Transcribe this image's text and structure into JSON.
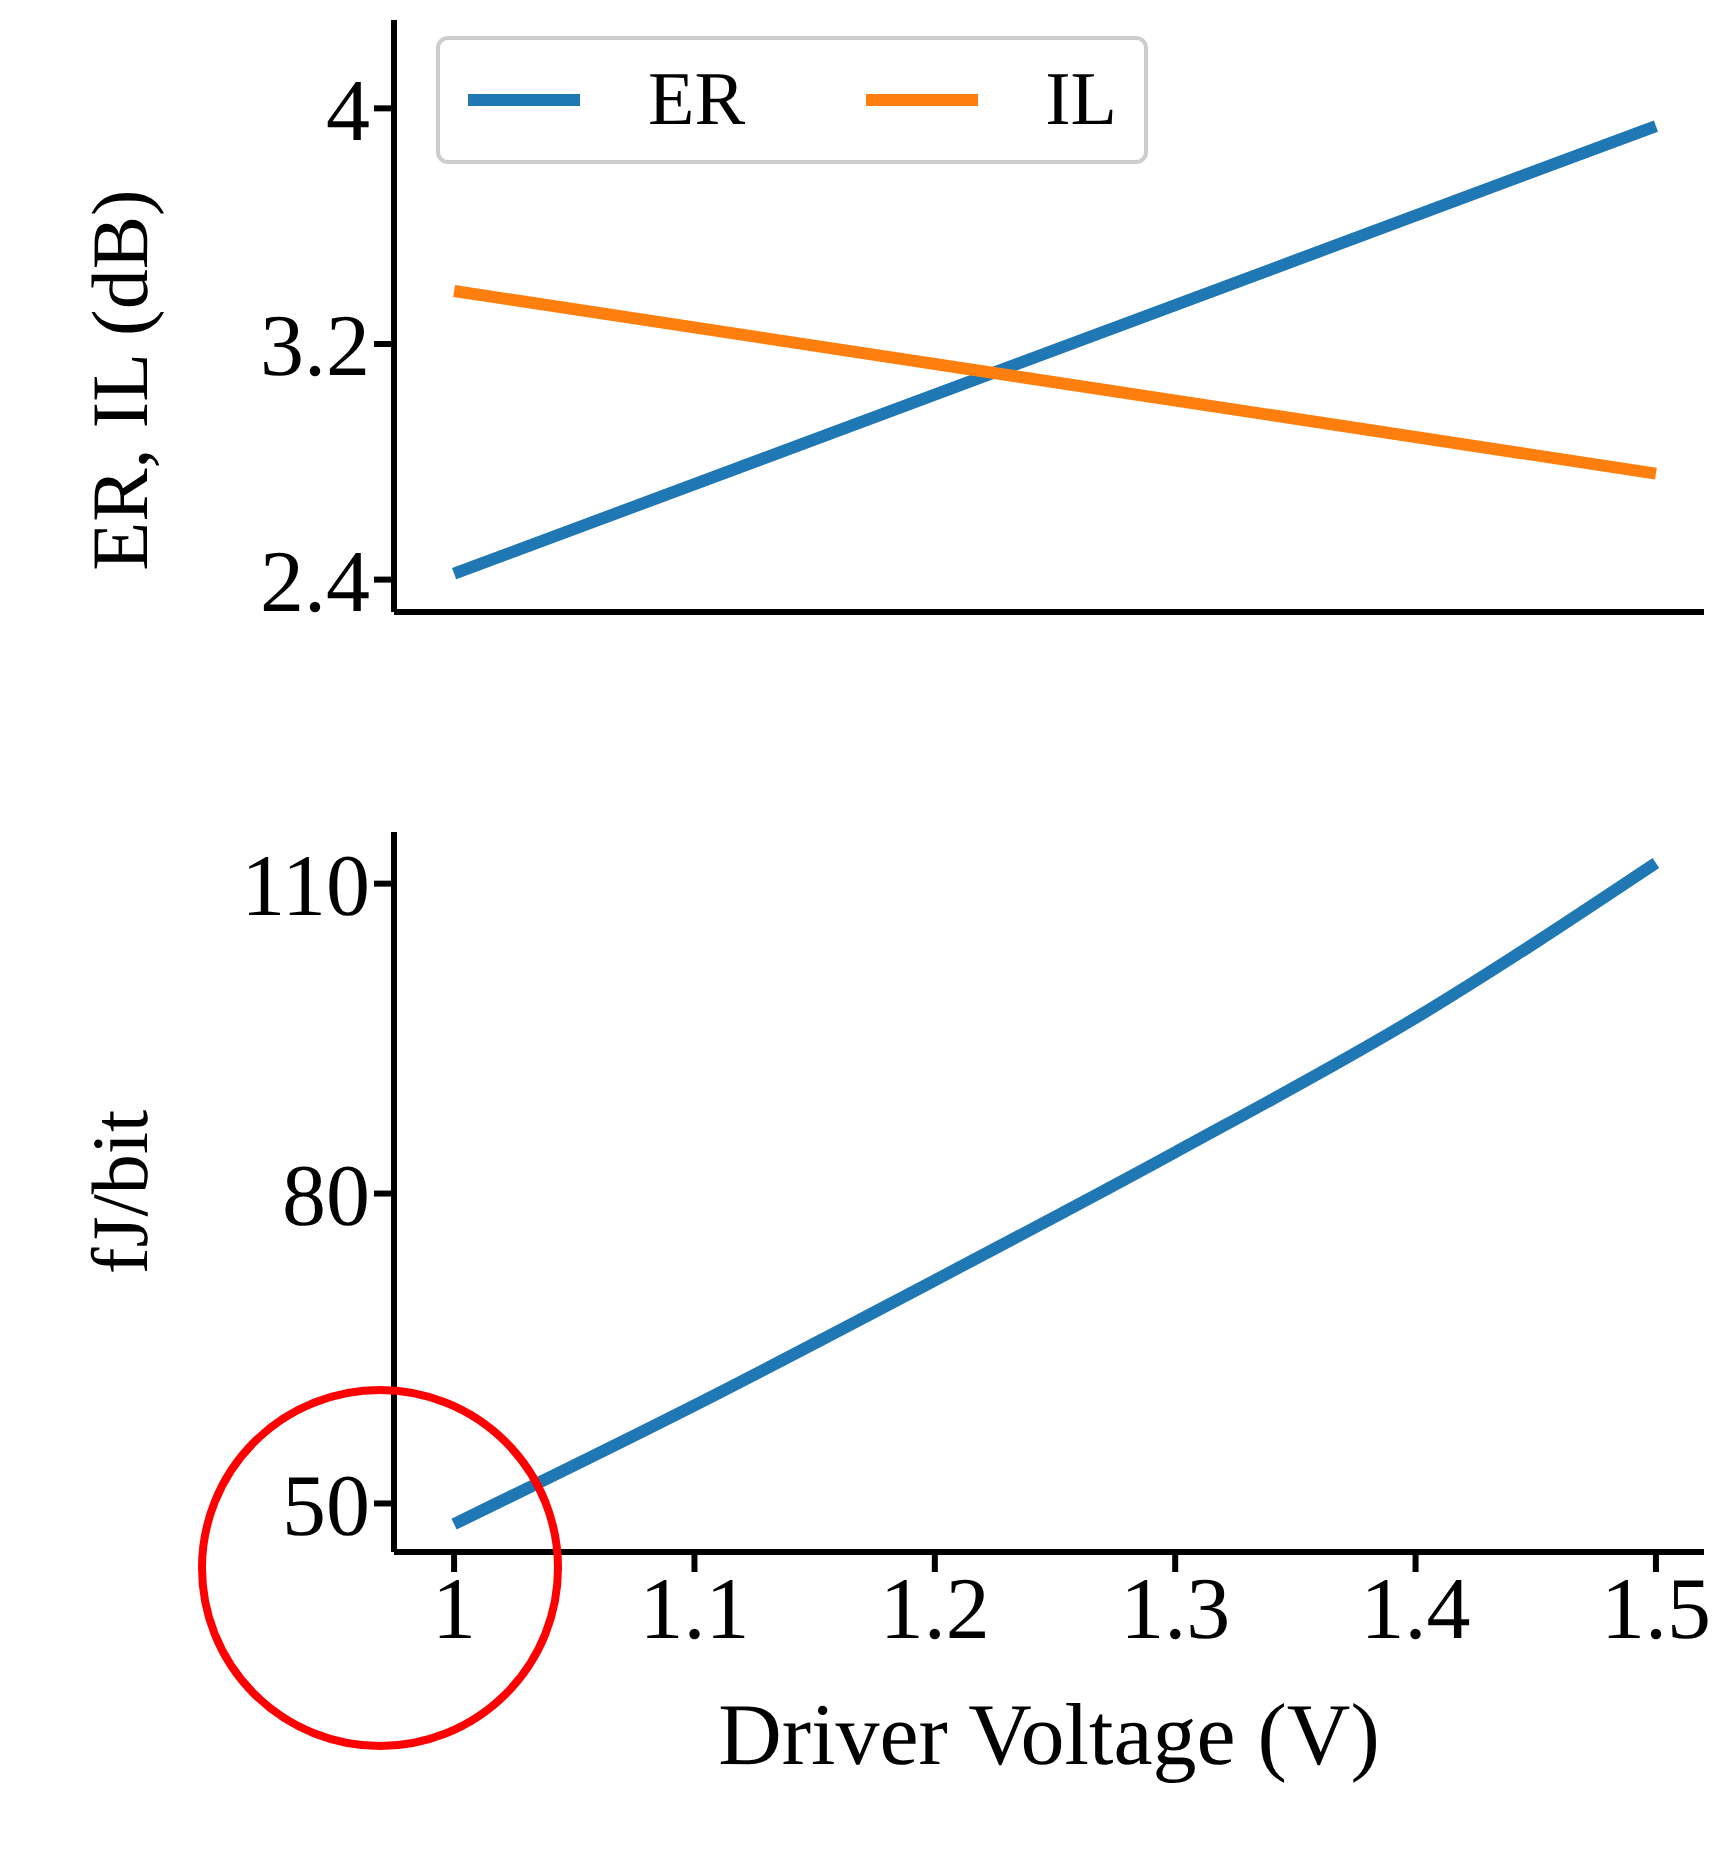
{
  "chart_data": [
    {
      "type": "line",
      "ylabel": "ER, IL (dB)",
      "x": [
        1,
        1.5
      ],
      "series": [
        {
          "name": "ER",
          "color": "#1f77b4",
          "values": [
            2.42,
            3.94
          ]
        },
        {
          "name": "IL",
          "color": "#ff7f0e",
          "values": [
            3.38,
            2.76
          ]
        }
      ],
      "xlim": [
        0.975,
        1.52
      ],
      "xticks": [
        1,
        1.1,
        1.2,
        1.3,
        1.4,
        1.5
      ],
      "ylim": [
        2.29,
        4.3
      ],
      "yticks": [
        2.4,
        3.2,
        4
      ],
      "legend": "top left",
      "tick_labels": "y"
    },
    {
      "type": "line",
      "xlabel": "Driver Voltage (V)",
      "ylabel": "fJ/bit",
      "x": [
        1,
        1.1,
        1.2,
        1.3,
        1.4,
        1.5
      ],
      "series": [
        {
          "color": "#1f77b4",
          "values": [
            48,
            59.5,
            71.6,
            84,
            97,
            112
          ]
        }
      ],
      "xlim": [
        0.975,
        1.52
      ],
      "xticks": [
        1,
        1.1,
        1.2,
        1.3,
        1.4,
        1.5
      ],
      "ylim": [
        45.3,
        115
      ],
      "yticks": [
        50,
        80,
        110
      ]
    }
  ]
}
